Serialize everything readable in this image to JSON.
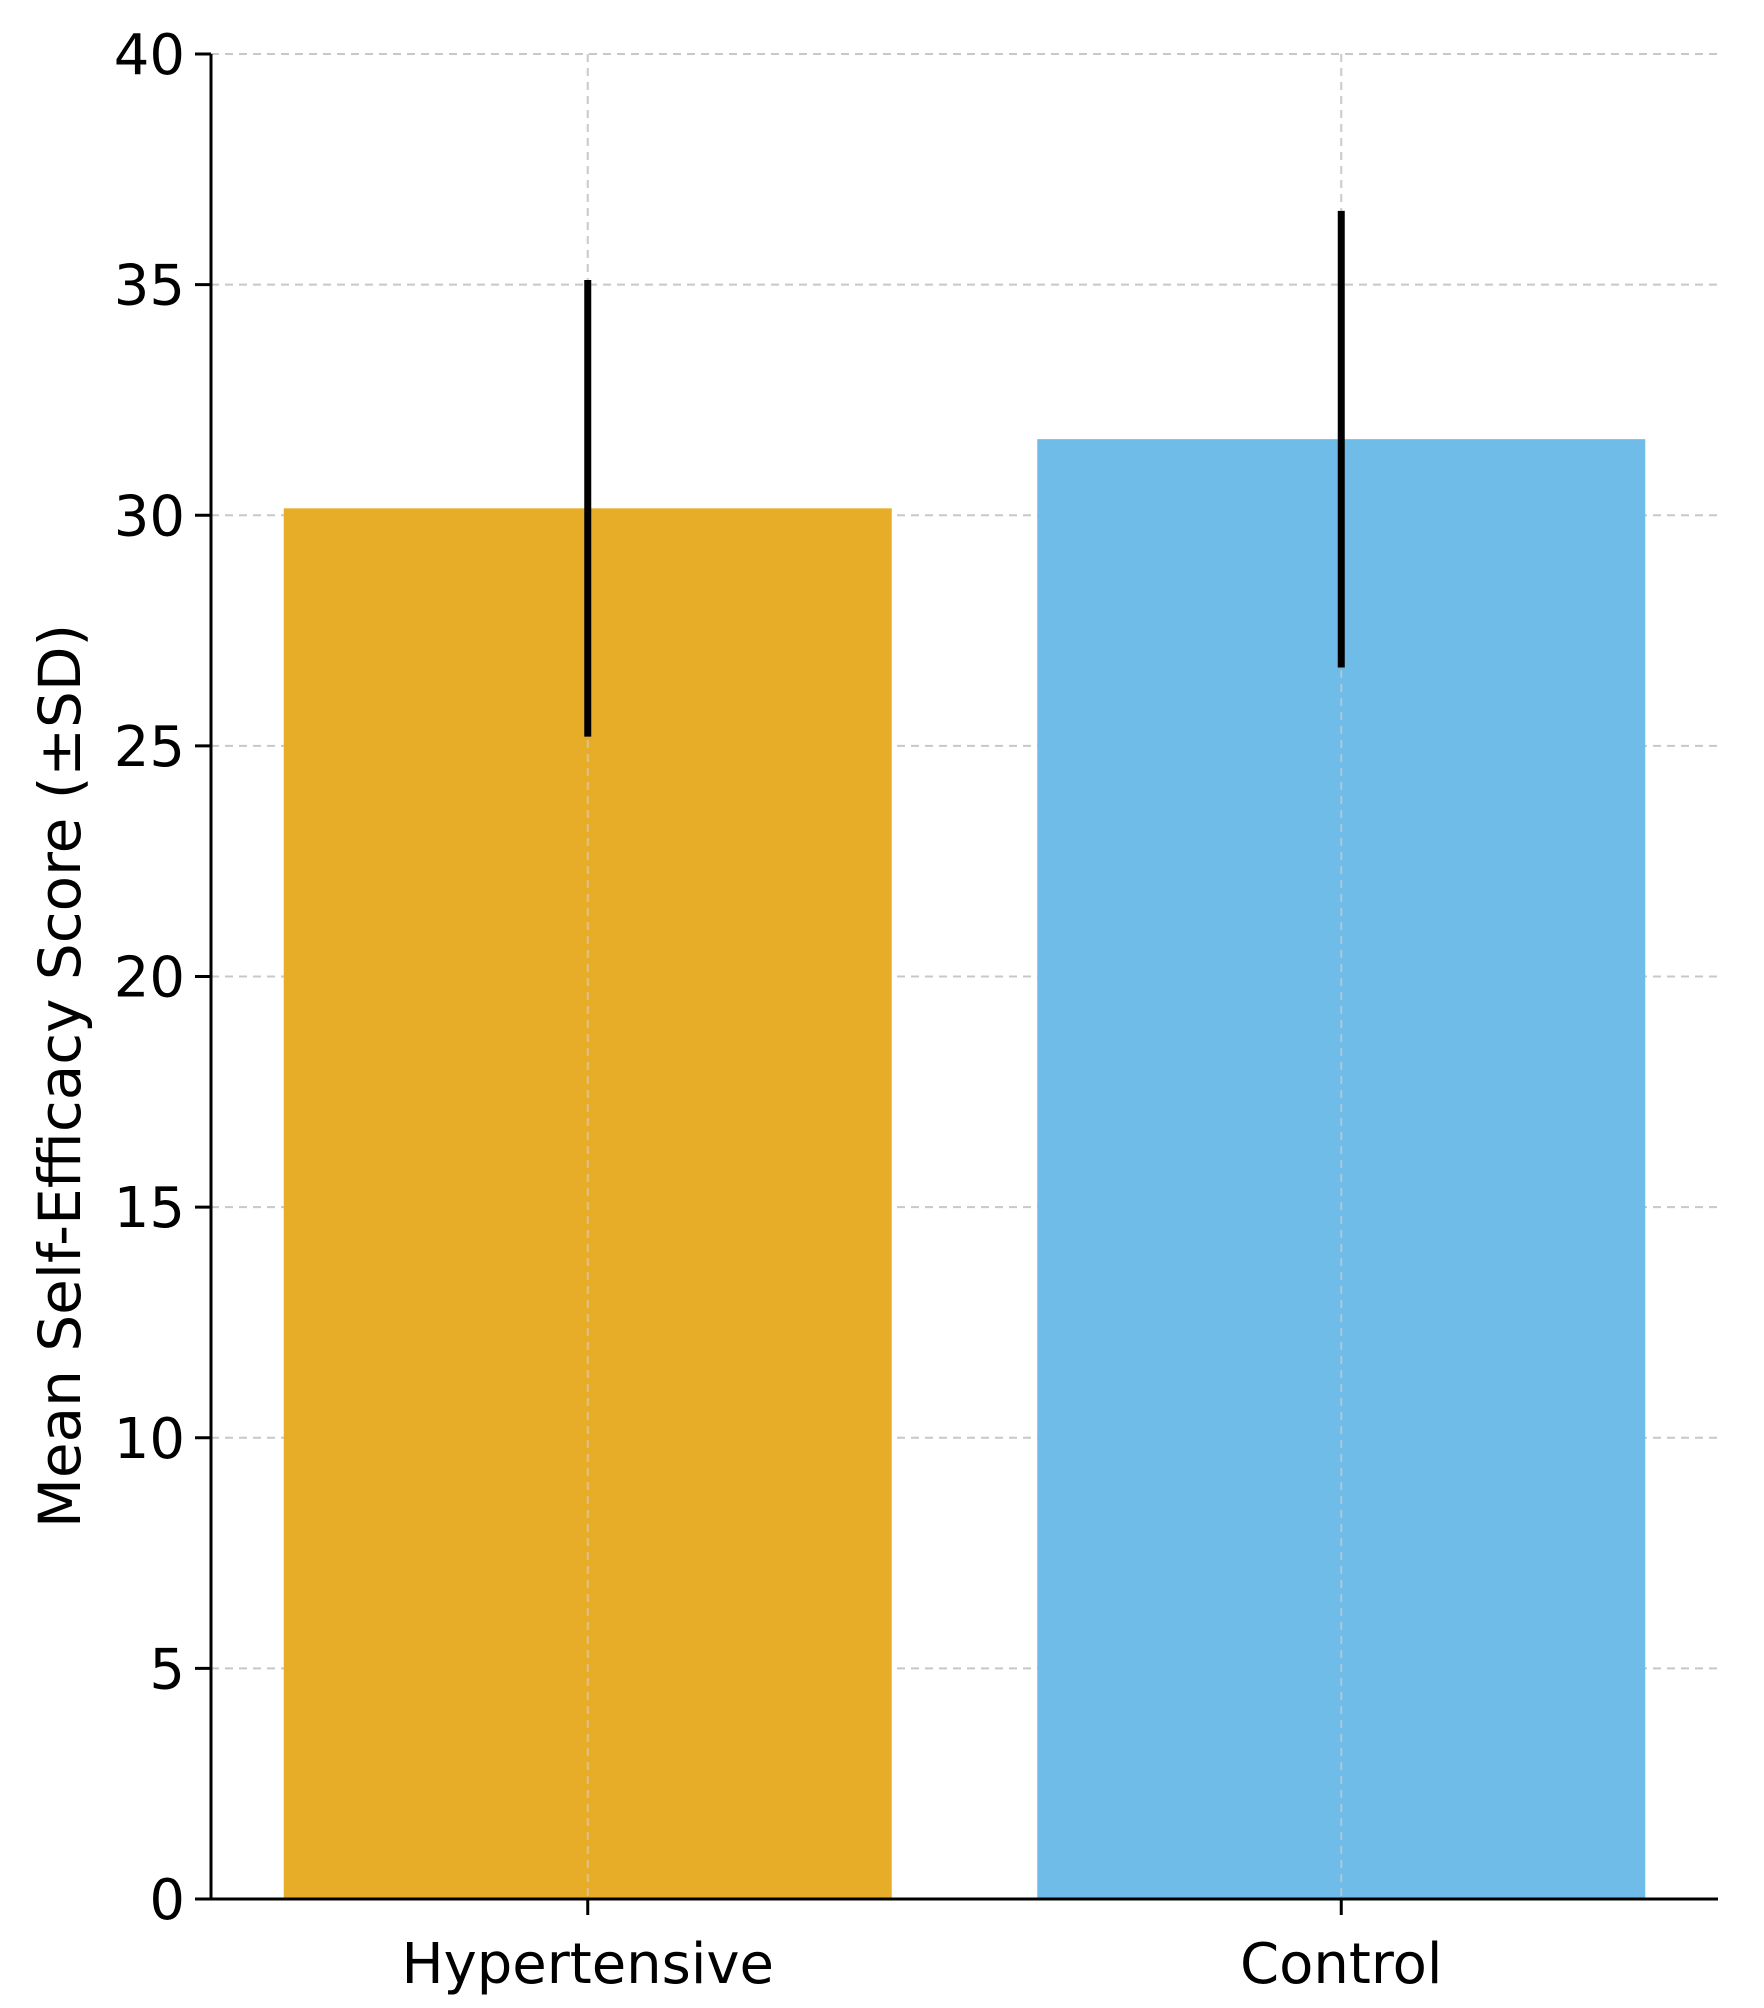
{
  "chart_data": {
    "type": "bar",
    "title": "",
    "xlabel": "",
    "ylabel": "Mean Self-Efficacy Score (±SD)",
    "categories": [
      "Hypertensive",
      "Control"
    ],
    "values": [
      30.15,
      31.65
    ],
    "errors": [
      4.95,
      4.95
    ],
    "colors": [
      "#E8AD28",
      "#6FBCE9"
    ],
    "error_color": "#000000",
    "ylim": [
      0,
      40
    ],
    "yticks": [
      0,
      5,
      10,
      15,
      20,
      25,
      30,
      35,
      40
    ],
    "ytick_labels": [
      "0",
      "5",
      "10",
      "15",
      "20",
      "25",
      "30",
      "35",
      "40"
    ],
    "grid": true,
    "grid_style": "dashed",
    "legend": false
  }
}
